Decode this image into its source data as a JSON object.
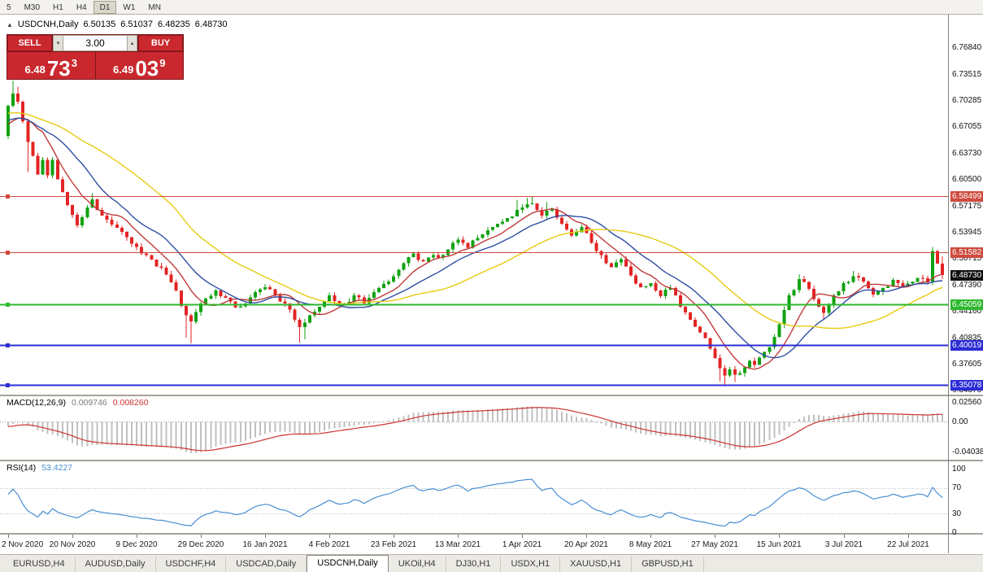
{
  "toolbar": {
    "timeframes": [
      "5",
      "M30",
      "H1",
      "H4",
      "D1",
      "W1",
      "MN"
    ],
    "active": "D1"
  },
  "title": {
    "collapse_icon": "▲",
    "symbol": "USDCNH,Daily",
    "open": "6.50135",
    "high": "6.51037",
    "low": "6.48235",
    "close": "6.48730"
  },
  "trade_panel": {
    "sell_label": "SELL",
    "buy_label": "BUY",
    "volume": "3.00",
    "sell_price": {
      "prefix": "6.48",
      "big": "73",
      "sup": "3"
    },
    "buy_price": {
      "prefix": "6.49",
      "big": "03",
      "sup": "9"
    }
  },
  "tabs": {
    "items": [
      "EURUSD,H4",
      "AUDUSD,Daily",
      "USDCHF,H4",
      "USDCAD,Daily",
      "USDCNH,Daily",
      "UKOil,H4",
      "DJ30,H1",
      "USDX,H1",
      "XAUUSD,H1",
      "GBPUSD,H1"
    ],
    "active": "USDCNH,Daily"
  },
  "chart_data": {
    "type": "candlestick",
    "symbol": "USDCNH",
    "timeframe": "Daily",
    "colors": {
      "bull": "#10a210",
      "bear": "#e32424"
    },
    "price_scale": {
      "top_price": 6.8,
      "bottom_price": 6.34
    },
    "price_axis_ticks": [
      "6.76840",
      "6.73515",
      "6.70285",
      "6.67055",
      "6.63730",
      "6.60500",
      "6.57175",
      "6.53945",
      "6.50715",
      "6.47390",
      "6.44160",
      "6.40835",
      "6.37605",
      "6.34375"
    ],
    "current_price_label": "6.48730",
    "levels": [
      {
        "price": 6.58499,
        "label": "6.58499",
        "color": "#cf4a3e",
        "width": 1.4
      },
      {
        "price": 6.51582,
        "label": "6.51582",
        "color": "#cf4a3e",
        "width": 1.4
      },
      {
        "price": 6.45059,
        "label": "6.45059",
        "color": "#2eb82e",
        "width": 2
      },
      {
        "price": 6.40019,
        "label": "6.40019",
        "color": "#2c2cd6",
        "width": 2
      },
      {
        "price": 6.35078,
        "label": "6.35078",
        "color": "#2c2cd6",
        "width": 2
      }
    ],
    "date_ticks": [
      [
        "2 Nov 2020",
        0
      ],
      [
        "20 Nov 2020",
        13
      ],
      [
        "9 Dec 2020",
        26
      ],
      [
        "29 Dec 2020",
        39
      ],
      [
        "16 Jan 2021",
        52
      ],
      [
        "4 Feb 2021",
        65
      ],
      [
        "23 Feb 2021",
        78
      ],
      [
        "13 Mar 2021",
        91
      ],
      [
        "1 Apr 2021",
        104
      ],
      [
        "20 Apr 2021",
        117
      ],
      [
        "8 May 2021",
        130
      ],
      [
        "27 May 2021",
        143
      ],
      [
        "15 Jun 2021",
        156
      ],
      [
        "3 Jul 2021",
        169
      ],
      [
        "22 Jul 2021",
        182
      ]
    ],
    "moving_averages": [
      {
        "period": 8,
        "color": "#c03a3a"
      },
      {
        "period": 16,
        "color": "#2e4fa2"
      },
      {
        "period": 34,
        "color": "#e8cb12"
      }
    ],
    "candles": {
      "count": 190,
      "seed": 11,
      "noise": 0.0035,
      "wick": 0.0045,
      "waypoints": [
        [
          -34,
          6.705
        ],
        [
          -26,
          6.697
        ],
        [
          -18,
          6.69
        ],
        [
          -10,
          6.684
        ],
        [
          -4,
          6.672
        ],
        [
          -1,
          6.66
        ],
        [
          0,
          6.697
        ],
        [
          1,
          6.712
        ],
        [
          2,
          6.702
        ],
        [
          3,
          6.678
        ],
        [
          4,
          6.652
        ],
        [
          5,
          6.635
        ],
        [
          6,
          6.612
        ],
        [
          7,
          6.63
        ],
        [
          8,
          6.611
        ],
        [
          9,
          6.63
        ],
        [
          10,
          6.606
        ],
        [
          11,
          6.59
        ],
        [
          12,
          6.574
        ],
        [
          13,
          6.562
        ],
        [
          14,
          6.549
        ],
        [
          15,
          6.559
        ],
        [
          16,
          6.571
        ],
        [
          17,
          6.581
        ],
        [
          18,
          6.568
        ],
        [
          19,
          6.561
        ],
        [
          20,
          6.556
        ],
        [
          22,
          6.546
        ],
        [
          24,
          6.534
        ],
        [
          26,
          6.522
        ],
        [
          28,
          6.512
        ],
        [
          30,
          6.498
        ],
        [
          32,
          6.488
        ],
        [
          33,
          6.478
        ],
        [
          34,
          6.468
        ],
        [
          35,
          6.449
        ],
        [
          36,
          6.4375
        ],
        [
          37,
          6.4295
        ],
        [
          38,
          6.4415
        ],
        [
          39,
          6.452
        ],
        [
          40,
          6.458
        ],
        [
          42,
          6.468
        ],
        [
          44,
          6.459
        ],
        [
          46,
          6.447
        ],
        [
          48,
          6.452
        ],
        [
          50,
          6.466
        ],
        [
          52,
          6.472
        ],
        [
          54,
          6.462
        ],
        [
          56,
          6.452
        ],
        [
          58,
          6.432
        ],
        [
          59,
          6.4225
        ],
        [
          60,
          6.4285
        ],
        [
          62,
          6.442
        ],
        [
          64,
          6.455
        ],
        [
          65,
          6.462
        ],
        [
          66,
          6.455
        ],
        [
          68,
          6.452
        ],
        [
          70,
          6.462
        ],
        [
          72,
          6.452
        ],
        [
          74,
          6.466
        ],
        [
          76,
          6.476
        ],
        [
          78,
          6.486
        ],
        [
          80,
          6.502
        ],
        [
          82,
          6.514
        ],
        [
          84,
          6.504
        ],
        [
          86,
          6.512
        ],
        [
          88,
          6.512
        ],
        [
          90,
          6.527
        ],
        [
          91,
          6.531
        ],
        [
          93,
          6.521
        ],
        [
          95,
          6.533
        ],
        [
          97,
          6.543
        ],
        [
          99,
          6.551
        ],
        [
          101,
          6.558
        ],
        [
          103,
          6.568
        ],
        [
          104,
          6.571
        ],
        [
          106,
          6.576
        ],
        [
          108,
          6.561
        ],
        [
          110,
          6.569
        ],
        [
          112,
          6.551
        ],
        [
          114,
          6.536
        ],
        [
          116,
          6.547
        ],
        [
          118,
          6.527
        ],
        [
          120,
          6.512
        ],
        [
          122,
          6.497
        ],
        [
          124,
          6.507
        ],
        [
          126,
          6.487
        ],
        [
          128,
          6.472
        ],
        [
          130,
          6.477
        ],
        [
          132,
          6.461
        ],
        [
          134,
          6.471
        ],
        [
          136,
          6.448
        ],
        [
          138,
          6.432
        ],
        [
          140,
          6.416
        ],
        [
          142,
          6.396
        ],
        [
          144,
          6.372
        ],
        [
          145,
          6.3625
        ],
        [
          146,
          6.3705
        ],
        [
          147,
          6.3635
        ],
        [
          148,
          6.3655
        ],
        [
          150,
          6.381
        ],
        [
          151,
          6.376
        ],
        [
          152,
          6.385
        ],
        [
          153,
          6.392
        ],
        [
          154,
          6.398
        ],
        [
          156,
          6.426
        ],
        [
          158,
          6.462
        ],
        [
          160,
          6.482
        ],
        [
          162,
          6.47
        ],
        [
          164,
          6.448
        ],
        [
          165,
          6.4405
        ],
        [
          167,
          6.462
        ],
        [
          169,
          6.477
        ],
        [
          171,
          6.486
        ],
        [
          173,
          6.479
        ],
        [
          175,
          6.463
        ],
        [
          177,
          6.471
        ],
        [
          179,
          6.481
        ],
        [
          181,
          6.473
        ],
        [
          183,
          6.479
        ],
        [
          185,
          6.483
        ],
        [
          186,
          6.478
        ],
        [
          187,
          6.517
        ],
        [
          188,
          6.5014
        ],
        [
          189,
          6.4873
        ]
      ],
      "wick_high_overrides": {
        "1": 6.7285,
        "2": 6.721,
        "17": 6.5885,
        "103": 6.5805,
        "105": 6.5832,
        "106": 6.5845,
        "109": 6.5775,
        "160": 6.4885,
        "171": 6.4925,
        "187": 6.5222,
        "188": 6.5165
      },
      "wick_low_overrides": {
        "4": 6.615,
        "36": 6.4095,
        "37": 6.4025,
        "59": 6.4035,
        "60": 6.4075,
        "144": 6.3555,
        "145": 6.3515,
        "147": 6.3545,
        "165": 6.433
      },
      "last_candle": [
        6.50135,
        6.51037,
        6.48235,
        6.4873
      ]
    },
    "macd": {
      "label": "MACD(12,26,9)",
      "value_main": "0.009746",
      "value_signal": "0.008260",
      "fast": 12,
      "slow": 26,
      "signal": 9,
      "axis_labels": [
        "0.02560",
        "0.00",
        "-0.04038"
      ],
      "scale_max": 0.0285,
      "scale_min": -0.0465,
      "hist_color": "#c0c0c0",
      "signal_color": "#cc3333"
    },
    "rsi": {
      "label": "RSI(14)",
      "value": "53.4227",
      "period": 14,
      "axis_labels": [
        "100",
        "70",
        "30",
        "0"
      ],
      "upper": 70,
      "lower": 30,
      "line_color": "#4a8fd4"
    }
  }
}
